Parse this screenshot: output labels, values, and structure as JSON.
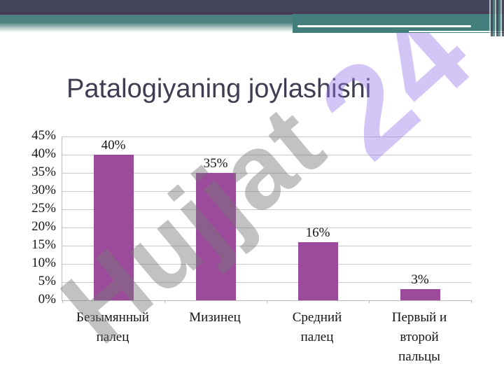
{
  "slide": {
    "title": "Patalogiyaning joylashishi"
  },
  "watermarks": {
    "brand": "Hujjat",
    "number": "24"
  },
  "theme": {
    "top_bar_color": "#44455a",
    "accent_line_color": "#4a3b55",
    "teal_band_color": "#4d8180",
    "right_block_color": "#427e7c",
    "title_color": "#3e3e52",
    "watermark_gray": "rgba(120,120,120,0.45)",
    "watermark_lavender": "rgba(150,120,235,0.42)"
  },
  "chart_data": {
    "type": "bar",
    "title": "",
    "xlabel": "",
    "ylabel": "",
    "categories": [
      "Безымянный палец",
      "Мизинец",
      "Средний палец",
      "Первый и второй пальцы"
    ],
    "values": [
      40,
      35,
      16,
      3
    ],
    "data_labels": [
      "40%",
      "35%",
      "16%",
      "3%"
    ],
    "y_ticks": [
      "45%",
      "40%",
      "35%",
      "30%",
      "25%",
      "20%",
      "15%",
      "10%",
      "5%",
      "0%"
    ],
    "ylim": [
      0,
      45
    ],
    "y_tick_step": 5,
    "grid": true,
    "legend": false,
    "bar_color": "#9c4a9b",
    "gridline_color": "#c9c9c9",
    "axis_color": "#b9b9b9"
  }
}
